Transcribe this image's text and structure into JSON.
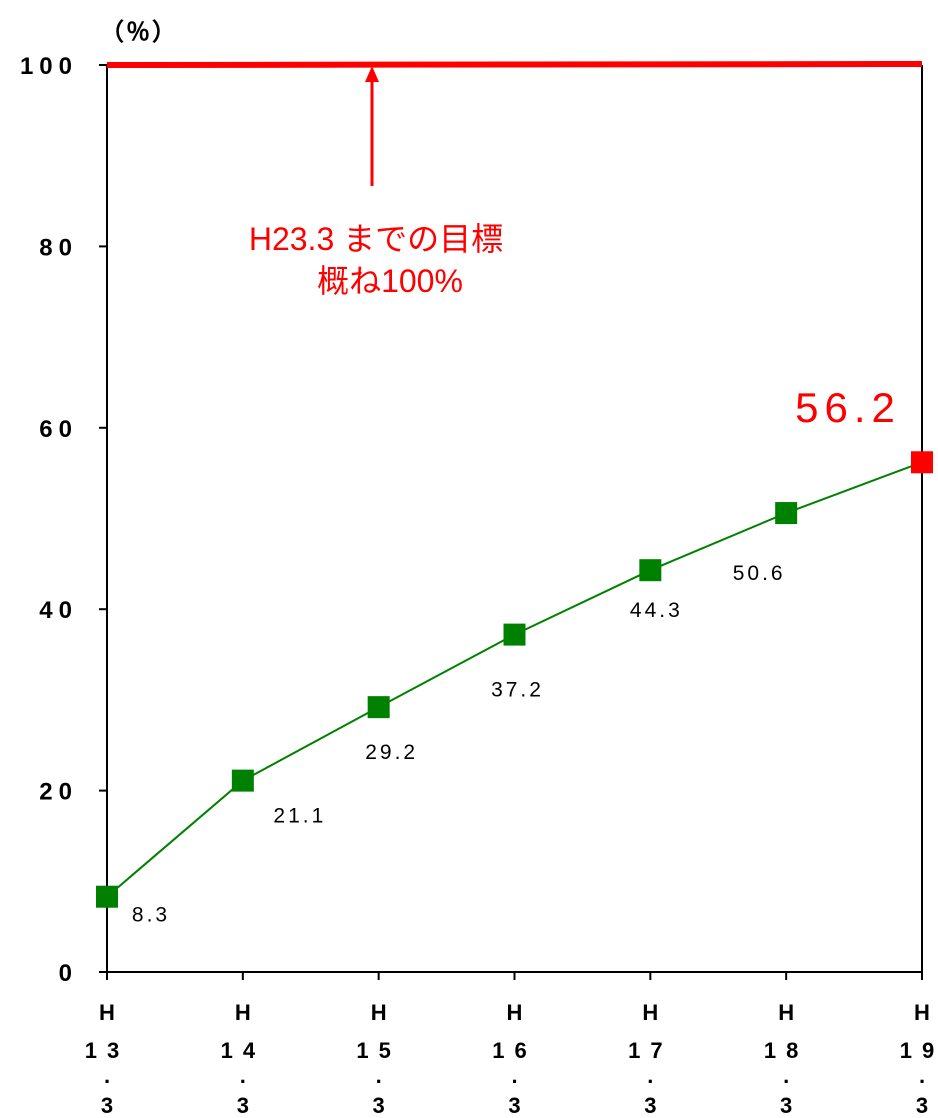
{
  "chart_data": {
    "type": "line",
    "unit_label": "（％）",
    "y_ticks": [
      "0",
      "20",
      "40",
      "60",
      "80",
      "100"
    ],
    "ylim": [
      0,
      100
    ],
    "categories": [
      [
        "H",
        "13",
        ".",
        "3"
      ],
      [
        "H",
        "14",
        ".",
        "3"
      ],
      [
        "H",
        "15",
        ".",
        "3"
      ],
      [
        "H",
        "16",
        ".",
        "3"
      ],
      [
        "H",
        "17",
        ".",
        "3"
      ],
      [
        "H",
        "18",
        ".",
        "3"
      ],
      [
        "H",
        "19",
        ".",
        "3"
      ]
    ],
    "series": [
      {
        "values": [
          8.3,
          21.1,
          29.2,
          37.2,
          44.3,
          50.6,
          56.2
        ],
        "color": "#008000",
        "highlight_color": "#ff0000"
      }
    ],
    "data_labels": [
      "8.3",
      "21.1",
      "29.2",
      "37.2",
      "44.3",
      "50.6",
      "56.2"
    ],
    "target": {
      "value": 100,
      "color": "#ff0000",
      "annotation_line1": "H23.3 までの目標",
      "annotation_line2": "概ね100%"
    }
  }
}
